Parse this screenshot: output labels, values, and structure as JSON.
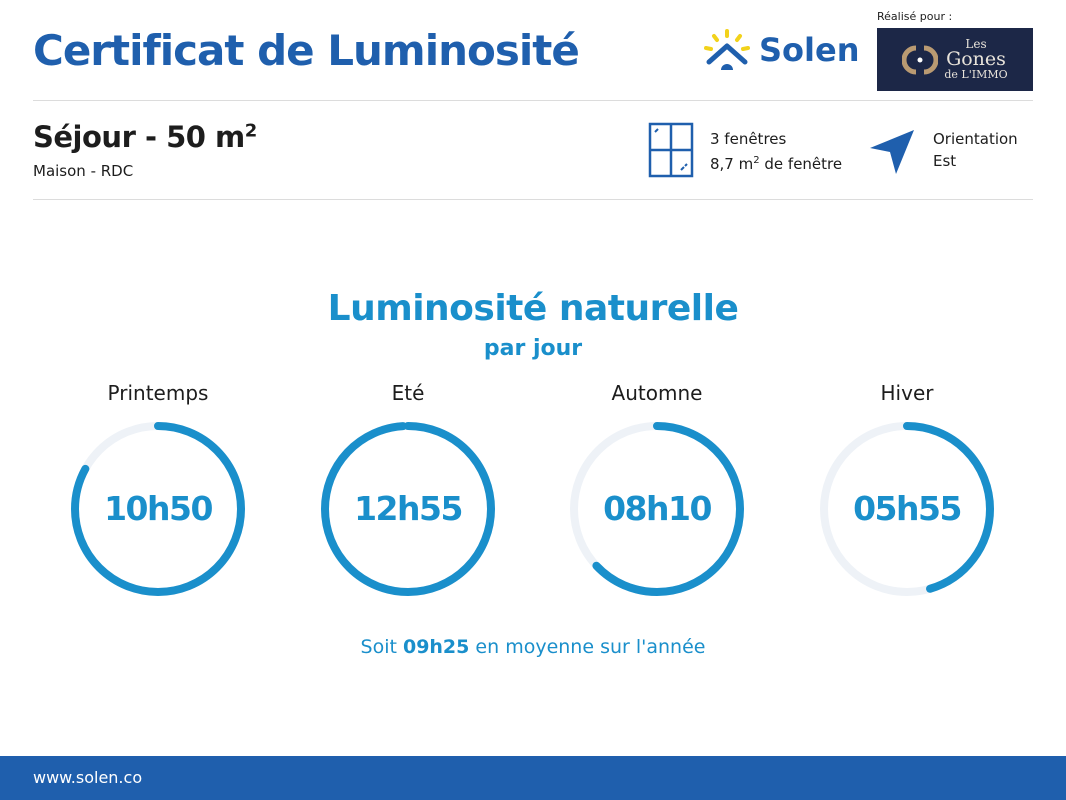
{
  "header": {
    "title": "Certificat de Luminosité",
    "brand": "Solen",
    "made_for_label": "Réalisé pour :",
    "client_logo_text": "Les Gones de L'IMMO"
  },
  "room": {
    "name": "Séjour - 50 m",
    "name_sup": "2",
    "subtitle": "Maison - RDC"
  },
  "windows": {
    "count": "3 fenêtres",
    "area_prefix": "8,7 m",
    "area_sup": "2",
    "area_suffix": " de fenêtre",
    "icon": "window-icon"
  },
  "orientation": {
    "label": "Orientation",
    "value": "Est",
    "icon": "compass-arrow-icon"
  },
  "section": {
    "title": "Luminosité naturelle",
    "subtitle": "par jour"
  },
  "seasons": [
    {
      "label": "Printemps",
      "value": "10h50",
      "fill": 0.83
    },
    {
      "label": "Eté",
      "value": "12h55",
      "fill": 0.99
    },
    {
      "label": "Automne",
      "value": "08h10",
      "fill": 0.63
    },
    {
      "label": "Hiver",
      "value": "05h55",
      "fill": 0.455
    }
  ],
  "average": {
    "prefix": "Soit ",
    "value": "09h25",
    "suffix": " en moyenne sur l'année"
  },
  "footer": {
    "url": "www.solen.co"
  },
  "colors": {
    "brand": "#1f5fad",
    "accent": "#1a8fcb",
    "track": "#eef2f7",
    "sun": "#f2d21b"
  }
}
